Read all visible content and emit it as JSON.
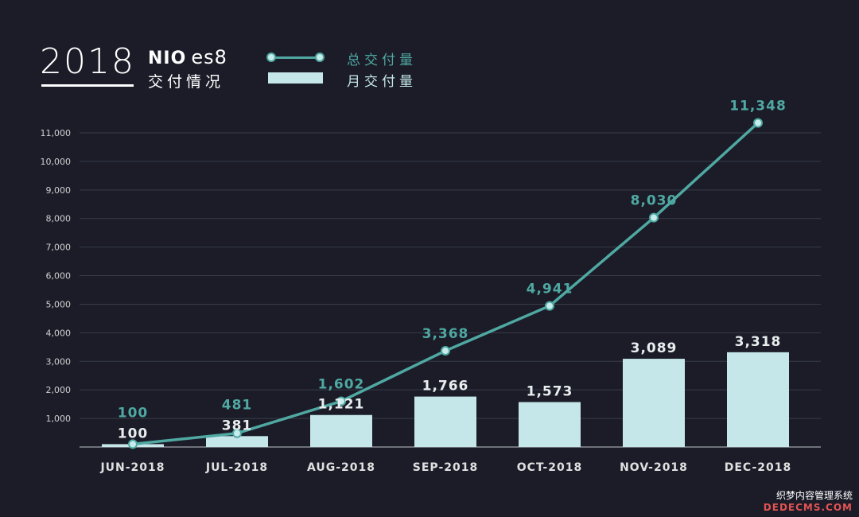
{
  "header": {
    "year": "2018",
    "brand": "NIO",
    "model": "es8",
    "subtitle": "交付情况"
  },
  "legend": {
    "line_label": "总交付量",
    "bar_label": "月交付量"
  },
  "colors": {
    "background": "#1b1c28",
    "line": "#4fa8a2",
    "bar": "#c5e7ea",
    "line_label_text": "#4fa8a2",
    "bar_label_text": "#e8eeee",
    "grid": "#3a3b48",
    "axis_text": "#d0d0d0"
  },
  "watermark": {
    "line1": "织梦内容管理系统",
    "line2": "DEDECMS.COM"
  },
  "chart_data": {
    "type": "bar",
    "categories": [
      "JUN-2018",
      "JUL-2018",
      "AUG-2018",
      "SEP-2018",
      "OCT-2018",
      "NOV-2018",
      "DEC-2018"
    ],
    "series": [
      {
        "name": "月交付量",
        "type": "bar",
        "values": [
          100,
          381,
          1121,
          1766,
          1573,
          3089,
          3318
        ],
        "labels": [
          "100",
          "381",
          "1,121",
          "1,766",
          "1,573",
          "3,089",
          "3,318"
        ]
      },
      {
        "name": "总交付量",
        "type": "line",
        "values": [
          100,
          481,
          1602,
          3368,
          4941,
          8030,
          11348
        ],
        "labels": [
          "100",
          "481",
          "1,602",
          "3,368",
          "4,941",
          "8,030",
          "11,348"
        ]
      }
    ],
    "y_ticks": [
      1000,
      2000,
      3000,
      4000,
      5000,
      6000,
      7000,
      8000,
      9000,
      10000,
      11000
    ],
    "y_tick_labels": [
      "1,000",
      "2,000",
      "3,000",
      "4,000",
      "5,000",
      "6,000",
      "7,000",
      "8,000",
      "9,000",
      "10,000",
      "11,000"
    ],
    "ylim": [
      0,
      11000
    ],
    "grid": true,
    "legend_position": "top"
  }
}
